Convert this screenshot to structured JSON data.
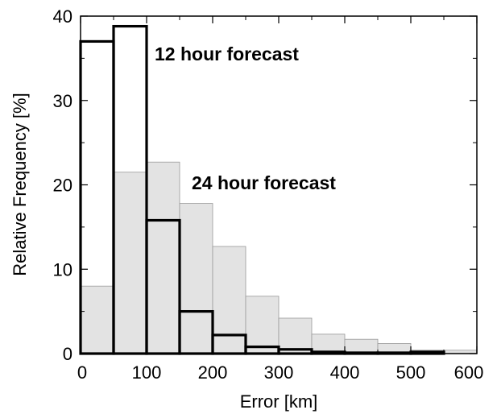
{
  "chart_data": {
    "type": "bar",
    "title": "",
    "xlabel": "Error [km]",
    "ylabel": "Relative Frequency [%]",
    "xlim": [
      0,
      600
    ],
    "ylim": [
      0,
      40
    ],
    "xticks": [
      "0",
      "100",
      "200",
      "300",
      "400",
      "500",
      "600"
    ],
    "yticks": [
      "0",
      "10",
      "20",
      "30",
      "40"
    ],
    "bin_edges": [
      0,
      50,
      100,
      150,
      200,
      250,
      300,
      350,
      400,
      450,
      500,
      550,
      600
    ],
    "grid": false,
    "series": [
      {
        "values": [
          8.0,
          21.5,
          22.7,
          17.8,
          12.7,
          6.8,
          4.2,
          2.3,
          1.7,
          1.2,
          0.4,
          0.4
        ],
        "color": "#e3e3e3",
        "style": "filled"
      },
      {
        "values": [
          37.0,
          38.8,
          15.8,
          5.0,
          2.2,
          0.8,
          0.5,
          0.2,
          0.1,
          0.1,
          0.2,
          0.0
        ],
        "color": "#000000",
        "style": "outline"
      }
    ],
    "annotations": {
      "forecast_12": "12 hour forecast",
      "forecast_24": "24 hour forecast"
    }
  }
}
